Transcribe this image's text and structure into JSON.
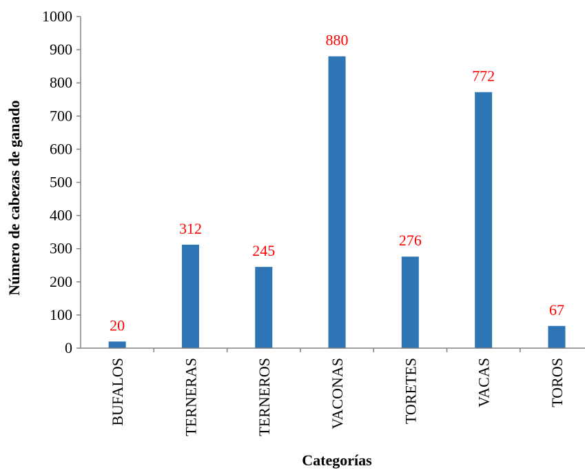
{
  "chart_data": {
    "type": "bar",
    "categories": [
      "BUFALOS",
      "TERNERAS",
      "TERNEROS",
      "VACONAS",
      "TORETES",
      "VACAS",
      "TOROS"
    ],
    "values": [
      20,
      312,
      245,
      880,
      276,
      772,
      67
    ],
    "xlabel": "Categorías",
    "ylabel": "Número de cabezas de ganado",
    "ylim": [
      0,
      1000
    ],
    "yticks": [
      "0",
      "100",
      "200",
      "300",
      "400",
      "500",
      "600",
      "700",
      "800",
      "900",
      "1000"
    ],
    "data_labels": [
      "20",
      "312",
      "245",
      "880",
      "276",
      "772",
      "67"
    ],
    "grid": false,
    "legend": "none",
    "colors": {
      "bar": "#2e75b6",
      "data_label": "#ff0000",
      "axis": "#808080"
    }
  }
}
